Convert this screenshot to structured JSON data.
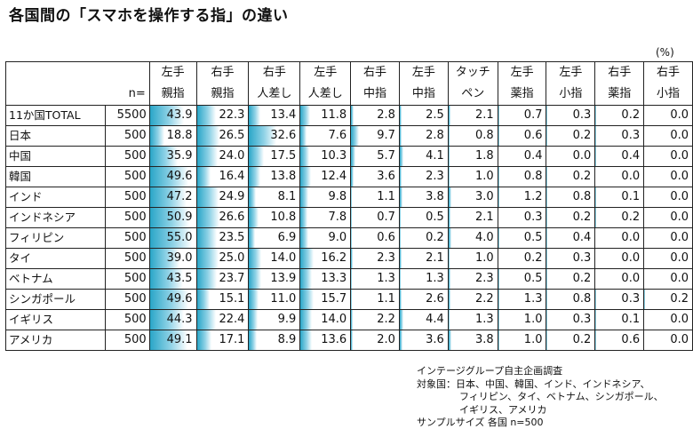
{
  "title": "各国間の「スマホを操作する指」の違い",
  "unit_label": "(%)",
  "n_header": "n=",
  "columns": [
    {
      "line1": "左手",
      "line2": "親指"
    },
    {
      "line1": "右手",
      "line2": "親指"
    },
    {
      "line1": "右手",
      "line2": "人差し"
    },
    {
      "line1": "左手",
      "line2": "人差し"
    },
    {
      "line1": "右手",
      "line2": "中指"
    },
    {
      "line1": "左手",
      "line2": "中指"
    },
    {
      "line1": "タッチ",
      "line2": "ペン"
    },
    {
      "line1": "左手",
      "line2": "薬指"
    },
    {
      "line1": "左手",
      "line2": "小指"
    },
    {
      "line1": "右手",
      "line2": "薬指"
    },
    {
      "line1": "右手",
      "line2": "小指"
    }
  ],
  "rows": [
    {
      "label": "11か国TOTAL",
      "n": "5500",
      "values": [
        "43.9",
        "22.3",
        "13.4",
        "11.8",
        "2.8",
        "2.5",
        "2.1",
        "0.7",
        "0.3",
        "0.2",
        "0.0"
      ]
    },
    {
      "label": "日本",
      "n": "500",
      "values": [
        "18.8",
        "26.5",
        "32.6",
        "7.6",
        "9.7",
        "2.8",
        "0.8",
        "0.6",
        "0.2",
        "0.3",
        "0.0"
      ]
    },
    {
      "label": "中国",
      "n": "500",
      "values": [
        "35.9",
        "24.0",
        "17.5",
        "10.3",
        "5.7",
        "4.1",
        "1.8",
        "0.4",
        "0.0",
        "0.4",
        "0.0"
      ]
    },
    {
      "label": "韓国",
      "n": "500",
      "values": [
        "49.6",
        "16.4",
        "13.8",
        "12.4",
        "3.6",
        "2.3",
        "1.0",
        "0.8",
        "0.2",
        "0.0",
        "0.0"
      ]
    },
    {
      "label": "インド",
      "n": "500",
      "values": [
        "47.2",
        "24.9",
        "8.1",
        "9.8",
        "1.1",
        "3.8",
        "3.0",
        "1.2",
        "0.8",
        "0.1",
        "0.0"
      ]
    },
    {
      "label": "インドネシア",
      "n": "500",
      "values": [
        "50.9",
        "26.6",
        "10.8",
        "7.8",
        "0.7",
        "0.5",
        "2.1",
        "0.3",
        "0.2",
        "0.2",
        "0.0"
      ]
    },
    {
      "label": "フィリピン",
      "n": "500",
      "values": [
        "55.0",
        "23.5",
        "6.9",
        "9.0",
        "0.6",
        "0.2",
        "4.0",
        "0.5",
        "0.4",
        "0.0",
        "0.0"
      ]
    },
    {
      "label": "タイ",
      "n": "500",
      "values": [
        "39.0",
        "25.0",
        "14.0",
        "16.2",
        "2.3",
        "2.1",
        "1.0",
        "0.2",
        "0.3",
        "0.0",
        "0.0"
      ]
    },
    {
      "label": "ベトナム",
      "n": "500",
      "values": [
        "43.5",
        "23.7",
        "13.9",
        "13.3",
        "1.3",
        "1.3",
        "2.3",
        "0.5",
        "0.2",
        "0.0",
        "0.0"
      ]
    },
    {
      "label": "シンガポール",
      "n": "500",
      "values": [
        "49.6",
        "15.1",
        "11.0",
        "15.7",
        "1.1",
        "2.6",
        "2.2",
        "1.3",
        "0.8",
        "0.3",
        "0.2"
      ]
    },
    {
      "label": "イギリス",
      "n": "500",
      "values": [
        "44.3",
        "22.4",
        "9.9",
        "14.0",
        "2.2",
        "4.4",
        "1.3",
        "1.0",
        "0.3",
        "0.1",
        "0.0"
      ]
    },
    {
      "label": "アメリカ",
      "n": "500",
      "values": [
        "49.1",
        "17.1",
        "8.9",
        "13.6",
        "2.0",
        "3.6",
        "3.8",
        "1.0",
        "0.2",
        "0.6",
        "0.0"
      ]
    }
  ],
  "footer": {
    "line1": "インテージグループ自主企画調査",
    "line2": "対象国：日本、中国、韓国、インド、インドネシア、",
    "line3": "フィリピン、タイ、ベトナム、シンガポール、",
    "line4": "イギリス、アメリカ",
    "line5": "サンプルサイズ 各国 n=500"
  },
  "bar_color": "#2aa6c8",
  "chart_data": {
    "type": "table",
    "title": "各国間の「スマホを操作する指」の違い",
    "unit": "%",
    "bar_scale_max": 60
  }
}
